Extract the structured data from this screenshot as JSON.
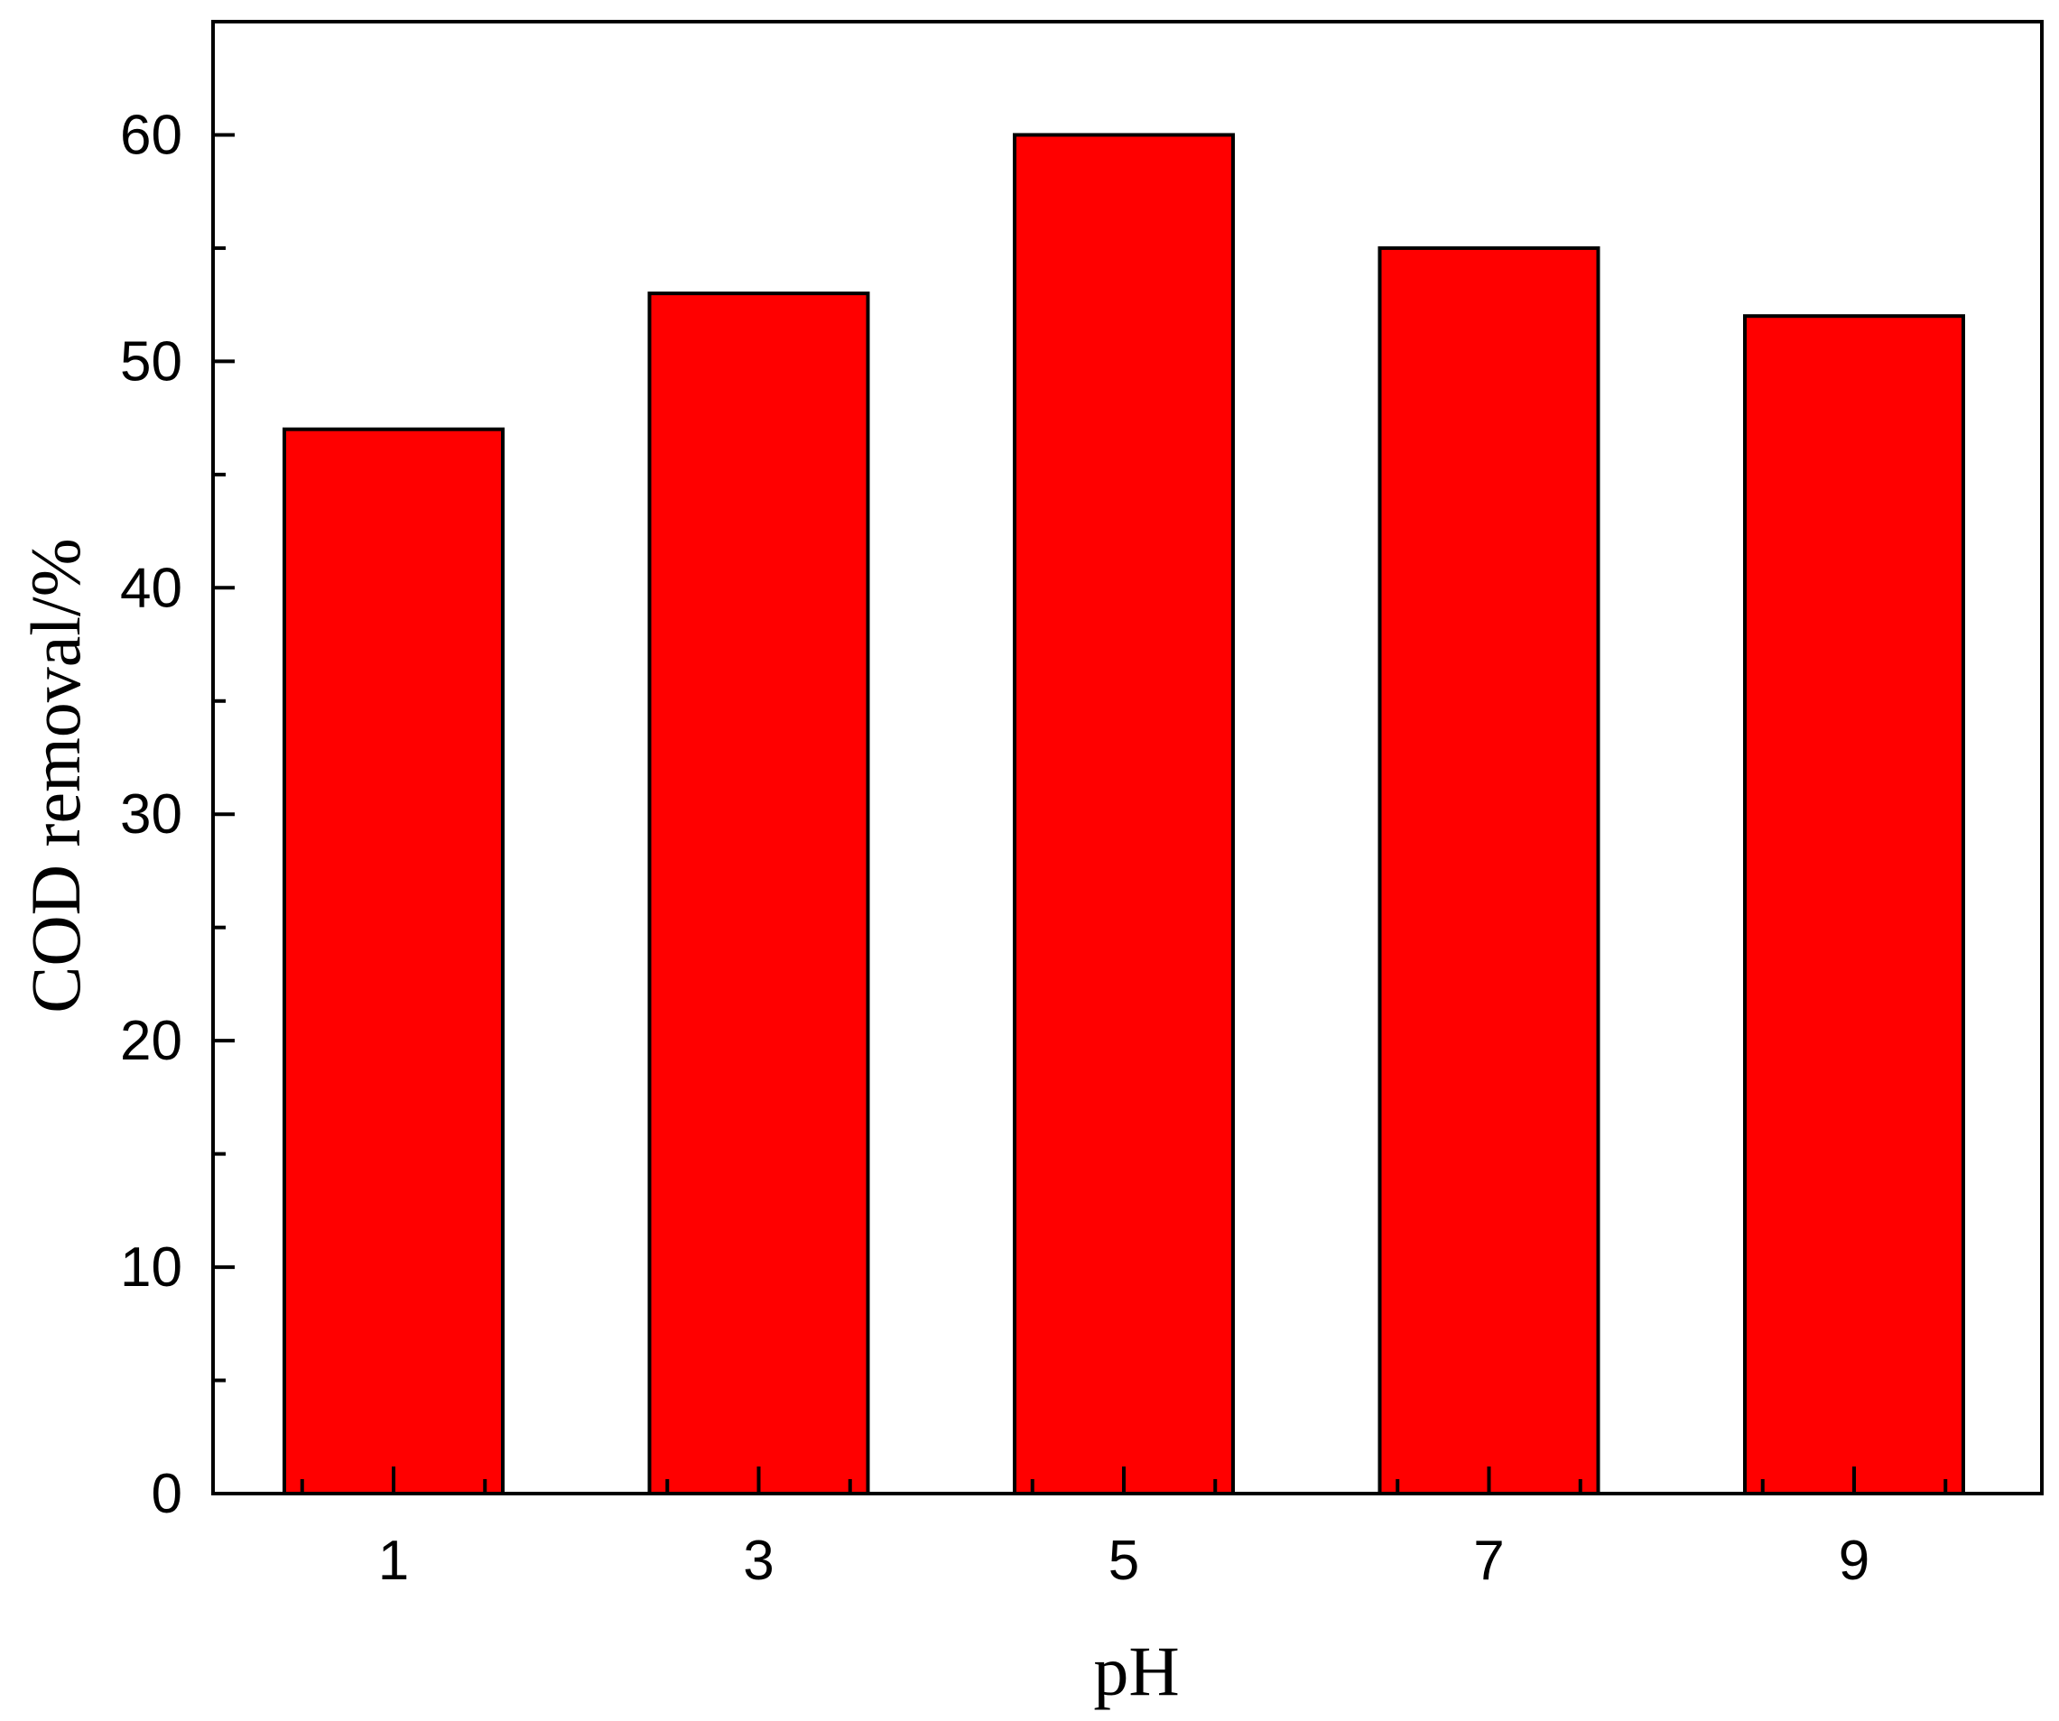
{
  "chart_data": {
    "type": "bar",
    "categories": [
      "1",
      "3",
      "5",
      "7",
      "9"
    ],
    "values": [
      47,
      53,
      60,
      55,
      52
    ],
    "title": "",
    "xlabel": "pH",
    "ylabel": "COD removal/%",
    "ylim": [
      0,
      65
    ],
    "yticks": [
      0,
      10,
      20,
      30,
      40,
      50,
      60
    ],
    "grid": false,
    "bar_color": "#FF0000",
    "edge_color": "#000000"
  }
}
